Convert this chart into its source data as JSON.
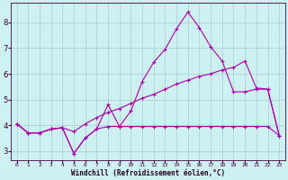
{
  "xlabel": "Windchill (Refroidissement éolien,°C)",
  "background_color": "#cdf0f0",
  "grid_color": "#b0c8d8",
  "line_color": "#aa00aa",
  "xlim": [
    -0.5,
    23.5
  ],
  "ylim": [
    2.65,
    8.75
  ],
  "xticks": [
    0,
    1,
    2,
    3,
    4,
    5,
    6,
    7,
    8,
    9,
    10,
    11,
    12,
    13,
    14,
    15,
    16,
    17,
    18,
    19,
    20,
    21,
    22,
    23
  ],
  "yticks": [
    3,
    4,
    5,
    6,
    7,
    8
  ],
  "line1_x": [
    0,
    1,
    2,
    3,
    4,
    5,
    6,
    7,
    8,
    9,
    10,
    11,
    12,
    13,
    14,
    15,
    16,
    17,
    18,
    19,
    20,
    21,
    22,
    23
  ],
  "line1_y": [
    4.05,
    3.7,
    3.7,
    3.85,
    3.9,
    2.9,
    3.5,
    3.85,
    4.8,
    3.95,
    4.55,
    5.7,
    6.45,
    6.95,
    7.75,
    8.4,
    7.8,
    7.05,
    6.5,
    5.3,
    5.3,
    5.4,
    5.4,
    3.6
  ],
  "line2_x": [
    0,
    1,
    2,
    3,
    4,
    5,
    6,
    7,
    8,
    9,
    10,
    11,
    12,
    13,
    14,
    15,
    16,
    17,
    18,
    19,
    20,
    21,
    22,
    23
  ],
  "line2_y": [
    4.05,
    3.7,
    3.7,
    3.85,
    3.9,
    3.75,
    4.05,
    4.3,
    4.5,
    4.65,
    4.85,
    5.05,
    5.2,
    5.4,
    5.6,
    5.75,
    5.9,
    6.0,
    6.15,
    6.25,
    6.5,
    5.45,
    5.4,
    3.6
  ],
  "line3_x": [
    0,
    1,
    2,
    3,
    4,
    5,
    6,
    7,
    8,
    9,
    10,
    11,
    12,
    13,
    14,
    15,
    16,
    17,
    18,
    19,
    20,
    21,
    22,
    23
  ],
  "line3_y": [
    4.05,
    3.7,
    3.7,
    3.85,
    3.9,
    2.9,
    3.5,
    3.85,
    3.95,
    3.95,
    3.95,
    3.95,
    3.95,
    3.95,
    3.95,
    3.95,
    3.95,
    3.95,
    3.95,
    3.95,
    3.95,
    3.95,
    3.95,
    3.6
  ]
}
